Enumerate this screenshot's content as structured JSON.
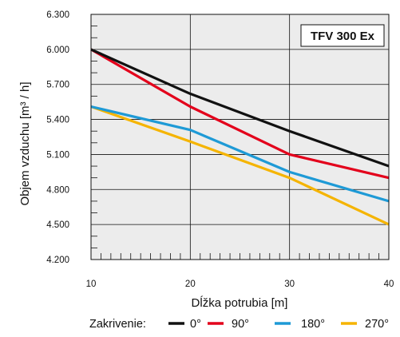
{
  "chart_data": {
    "type": "line",
    "title": "TFV 300 Ex",
    "xlabel": "Dĺžka potrubia [m]",
    "ylabel": "Objem vzduchu [m³ / h]",
    "x": [
      10,
      20,
      30,
      40
    ],
    "xlim": [
      10,
      40
    ],
    "ylim": [
      4200,
      6300
    ],
    "x_ticks": [
      "10",
      "20",
      "30",
      "40"
    ],
    "y_ticks": [
      {
        "value": 4200,
        "label": "4.200"
      },
      {
        "value": 4500,
        "label": "4.500"
      },
      {
        "value": 4800,
        "label": "4.800"
      },
      {
        "value": 5100,
        "label": "5.100"
      },
      {
        "value": 5400,
        "label": "5.400"
      },
      {
        "value": 5700,
        "label": "5.700"
      },
      {
        "value": 6000,
        "label": "6.000"
      },
      {
        "value": 6300,
        "label": "6.300"
      }
    ],
    "grid": true,
    "legend_label": "Zakrivenie:",
    "legend_position": "bottom",
    "series": [
      {
        "name": "0°",
        "color": "#111111",
        "values": [
          6000,
          5620,
          5300,
          5000
        ]
      },
      {
        "name": "90°",
        "color": "#e3001b",
        "values": [
          6000,
          5510,
          5100,
          4900
        ]
      },
      {
        "name": "180°",
        "color": "#1e9ad6",
        "values": [
          5510,
          5310,
          4950,
          4700
        ]
      },
      {
        "name": "270°",
        "color": "#f5b400",
        "values": [
          5510,
          5210,
          4900,
          4500
        ]
      }
    ]
  }
}
